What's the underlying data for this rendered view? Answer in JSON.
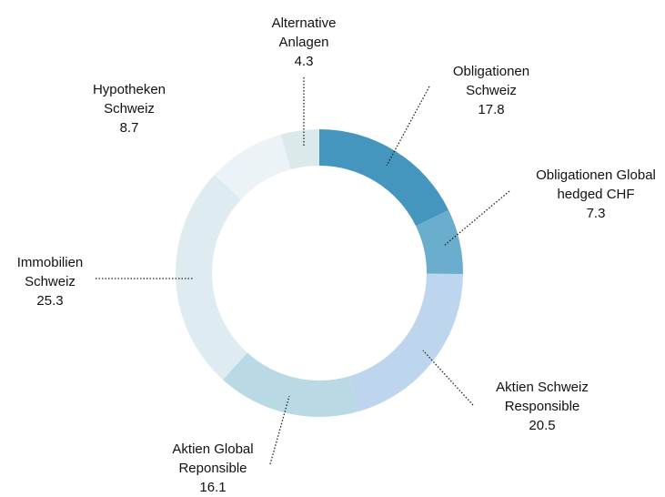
{
  "chart_data": {
    "type": "donut",
    "categories": [
      "Obligationen Schweiz",
      "Obligationen Global hedged CHF",
      "Aktien Schweiz Responsible",
      "Aktien Global Reponsible",
      "Immobilien Schweiz",
      "Hypotheken Schweiz",
      "Alternative Anlagen"
    ],
    "values": [
      17.8,
      7.3,
      20.5,
      16.1,
      25.3,
      8.7,
      4.3
    ],
    "colors": [
      "#4596be",
      "#6badcd",
      "#bdd6ee",
      "#b9d9e4",
      "#deecf2",
      "#ebf3f7",
      "#dce9ea"
    ]
  }
}
